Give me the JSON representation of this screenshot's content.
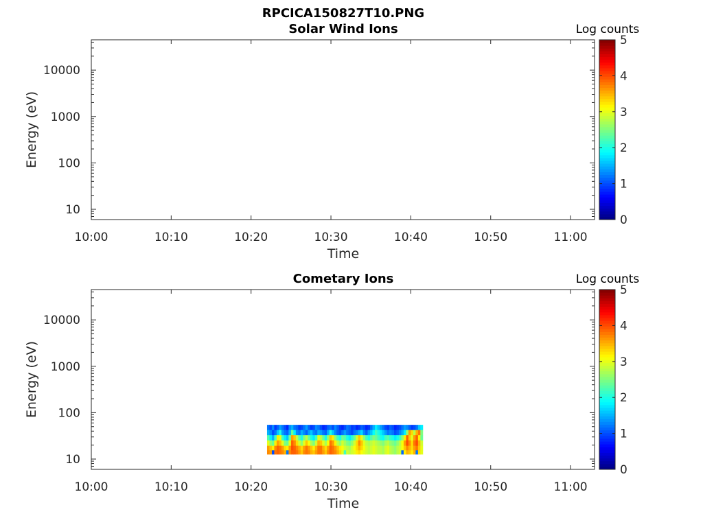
{
  "figure_title": "RPCICA150827T10.PNG",
  "colorscale": {
    "stops": [
      "#00007f",
      "#0000ff",
      "#007fff",
      "#00ffff",
      "#7fff7f",
      "#ffff00",
      "#ff7f00",
      "#ff0000",
      "#7f0000"
    ]
  },
  "chart_data": [
    {
      "type": "heatmap",
      "title": "Solar Wind Ions",
      "xlabel": "Time",
      "ylabel": "Energy (eV)",
      "x_ticks": [
        "10:00",
        "10:10",
        "10:20",
        "10:30",
        "10:40",
        "10:50",
        "11:00"
      ],
      "xlim": [
        "10:00",
        "11:03"
      ],
      "y_scale": "log",
      "y_ticks": [
        "10",
        "100",
        "1000",
        "10000"
      ],
      "ylim": [
        6,
        45000
      ],
      "colorbar": {
        "label": "Log counts",
        "range": [
          0,
          5
        ],
        "ticks": [
          "0",
          "1",
          "2",
          "3",
          "4",
          "5"
        ]
      },
      "data": []
    },
    {
      "type": "heatmap",
      "title": "Cometary Ions",
      "xlabel": "Time",
      "ylabel": "Energy (eV)",
      "x_ticks": [
        "10:00",
        "10:10",
        "10:20",
        "10:30",
        "10:40",
        "10:50",
        "11:00"
      ],
      "xlim": [
        "10:00",
        "11:03"
      ],
      "y_scale": "log",
      "y_ticks": [
        "10",
        "100",
        "1000",
        "10000"
      ],
      "ylim": [
        6,
        45000
      ],
      "colorbar": {
        "label": "Log counts",
        "range": [
          0,
          5
        ],
        "ticks": [
          "0",
          "1",
          "2",
          "3",
          "4",
          "5"
        ]
      },
      "data": {
        "time_range": [
          "10:22",
          "10:41.5"
        ],
        "energy_bins_eV": [
          48,
          37,
          29,
          22,
          17,
          14
        ],
        "log_counts": [
          [
            1.2,
            1.0,
            1.3,
            0.9,
            1.1,
            1.4,
            1.2,
            1.0,
            0.8,
            1.3,
            1.5,
            1.2,
            1.1,
            0.9,
            1.0,
            1.2,
            1.4,
            1.1,
            0.9,
            1.0,
            1.3,
            1.2,
            1.0,
            0.8,
            0.9,
            1.1,
            1.2,
            1.0,
            1.3,
            1.1,
            0.9,
            0.8,
            1.0,
            1.2,
            1.1,
            0.9,
            1.0,
            0.8,
            0.9,
            1.1,
            1.0,
            0.8,
            0.9,
            1.2,
            1.5,
            1.8,
            1.6,
            1.4,
            1.2,
            1.0,
            0.9,
            1.1,
            1.0,
            0.8,
            0.9,
            1.0,
            1.2,
            1.4,
            1.3,
            1.1,
            0.9,
            1.0,
            1.2,
            1.6,
            1.8
          ],
          [
            1.5,
            1.3,
            1.0,
            1.2,
            1.6,
            2.0,
            1.4,
            1.2,
            1.1,
            1.5,
            2.4,
            1.8,
            1.3,
            1.2,
            1.5,
            1.3,
            1.1,
            1.4,
            1.6,
            1.3,
            1.2,
            1.5,
            1.4,
            1.2,
            1.1,
            1.5,
            2.0,
            1.6,
            1.3,
            1.1,
            1.0,
            1.2,
            1.4,
            1.2,
            1.1,
            1.0,
            1.2,
            1.3,
            1.5,
            1.7,
            1.3,
            1.1,
            1.4,
            1.6,
            1.9,
            2.2,
            2.0,
            1.8,
            1.6,
            1.4,
            1.2,
            1.3,
            1.2,
            1.0,
            1.1,
            1.3,
            1.5,
            1.8,
            2.6,
            3.6,
            3.3,
            2.8,
            3.5,
            3.8,
            2.5
          ],
          [
            2.3,
            1.8,
            1.5,
            2.2,
            3.2,
            3.0,
            2.2,
            1.8,
            1.6,
            2.4,
            3.6,
            3.4,
            2.8,
            2.3,
            2.0,
            2.5,
            2.8,
            2.4,
            2.0,
            1.8,
            2.2,
            3.0,
            2.8,
            2.4,
            2.0,
            2.6,
            3.4,
            3.2,
            2.6,
            2.2,
            2.0,
            2.4,
            2.3,
            2.0,
            1.8,
            2.1,
            2.4,
            2.9,
            3.4,
            3.0,
            2.6,
            2.2,
            2.0,
            2.3,
            2.5,
            2.4,
            2.2,
            2.0,
            1.9,
            2.2,
            2.3,
            2.1,
            2.0,
            1.8,
            2.0,
            2.2,
            2.6,
            3.2,
            3.9,
            3.4,
            3.0,
            3.6,
            3.9,
            3.2,
            2.4
          ],
          [
            3.0,
            2.6,
            2.4,
            3.2,
            3.6,
            3.4,
            3.0,
            2.5,
            2.4,
            3.0,
            3.9,
            3.7,
            3.3,
            2.9,
            2.6,
            3.0,
            3.4,
            3.1,
            2.7,
            2.5,
            2.9,
            3.5,
            3.4,
            3.0,
            2.7,
            3.1,
            3.8,
            3.6,
            3.2,
            2.8,
            2.6,
            2.9,
            2.7,
            2.5,
            2.4,
            2.6,
            2.9,
            3.3,
            3.7,
            3.4,
            3.0,
            2.8,
            2.7,
            2.8,
            2.9,
            2.8,
            2.7,
            2.6,
            2.5,
            2.7,
            2.8,
            2.6,
            2.5,
            2.4,
            2.6,
            2.8,
            3.1,
            3.6,
            4.0,
            3.7,
            3.3,
            3.8,
            4.0,
            3.5,
            2.9
          ],
          [
            3.6,
            3.4,
            3.2,
            3.7,
            3.9,
            3.8,
            3.6,
            3.3,
            3.2,
            3.6,
            4.0,
            3.9,
            3.7,
            3.5,
            3.3,
            3.6,
            3.8,
            3.6,
            3.4,
            3.2,
            3.5,
            3.8,
            3.8,
            3.5,
            3.3,
            3.6,
            3.9,
            3.8,
            3.6,
            3.4,
            3.2,
            3.1,
            2.9,
            2.8,
            2.7,
            2.9,
            3.1,
            3.3,
            3.5,
            3.3,
            3.1,
            2.9,
            2.8,
            2.9,
            3.0,
            2.9,
            2.8,
            2.8,
            2.7,
            2.9,
            3.0,
            2.8,
            2.7,
            2.6,
            2.8,
            2.9,
            3.1,
            3.4,
            3.7,
            3.5,
            3.3,
            3.6,
            3.8,
            3.4,
            3.0
          ],
          [
            3.7,
            3.6,
            1.0,
            3.8,
            3.9,
            3.8,
            3.7,
            3.5,
            1.2,
            3.7,
            3.9,
            3.9,
            3.8,
            3.6,
            3.4,
            3.7,
            3.8,
            3.7,
            3.5,
            3.4,
            3.6,
            3.8,
            3.8,
            3.6,
            3.4,
            3.7,
            3.9,
            3.8,
            3.7,
            3.5,
            3.3,
            3.0,
            2.2,
            2.9,
            2.8,
            2.9,
            3.0,
            3.2,
            3.3,
            3.1,
            3.0,
            2.9,
            2.8,
            2.9,
            3.0,
            2.9,
            2.8,
            2.8,
            2.7,
            2.9,
            3.0,
            2.8,
            2.7,
            2.6,
            2.8,
            2.9,
            1.1,
            3.2,
            3.5,
            3.4,
            3.2,
            3.5,
            1.2,
            3.3,
            3.0
          ]
        ]
      }
    }
  ]
}
